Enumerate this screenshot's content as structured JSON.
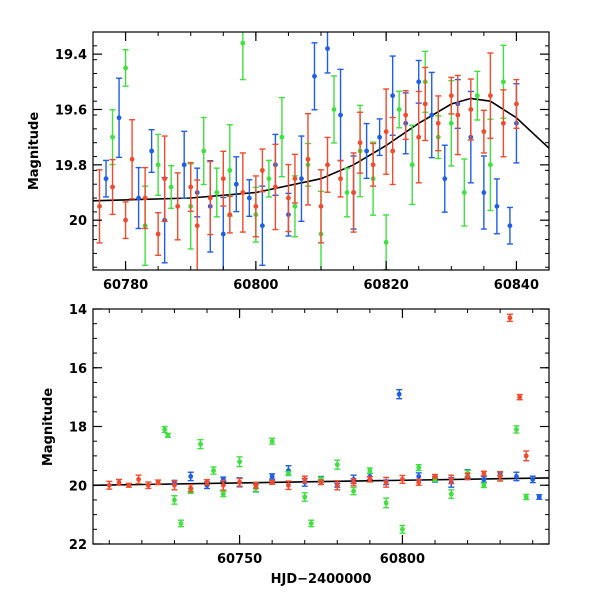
{
  "chart_data": [
    {
      "type": "scatter",
      "title": "",
      "xlabel": "",
      "ylabel": "Magnitude",
      "xlim": [
        60775,
        60845
      ],
      "ylim": [
        19.32,
        20.18
      ],
      "y_inverted": true,
      "grid": false,
      "xticks": [
        60780,
        60800,
        60820,
        60840
      ],
      "yticks": [
        19.4,
        19.6,
        19.8,
        20
      ],
      "ytick_labels": [
        "19.4",
        "19.6",
        "19.8",
        "20"
      ],
      "colors": {
        "blue": "#1f5ee6",
        "green": "#3fe03f",
        "red": "#f24a2c",
        "model": "#000000"
      },
      "model_curve": {
        "x": [
          60775,
          60790,
          60800,
          60810,
          60815,
          60820,
          60825,
          60830,
          60833,
          60836,
          60840,
          60845
        ],
        "y": [
          19.93,
          19.92,
          19.9,
          19.85,
          19.8,
          19.73,
          19.65,
          19.58,
          19.56,
          19.57,
          19.63,
          19.74
        ]
      },
      "series": [
        {
          "color_key": "blue",
          "x": [
            60777,
            60779,
            60782,
            60784,
            60786,
            60789,
            60791,
            60793,
            60795,
            60797,
            60799,
            60801,
            60803,
            60805,
            60807,
            60809,
            60811,
            60813,
            60815,
            60817,
            60819,
            60821,
            60823,
            60825,
            60827,
            60829,
            60831,
            60833,
            60835,
            60837,
            60839,
            60840
          ],
          "y": [
            19.85,
            19.63,
            19.92,
            19.75,
            20.0,
            19.8,
            19.9,
            19.95,
            20.05,
            19.87,
            19.92,
            20.02,
            19.8,
            19.98,
            19.85,
            19.48,
            19.38,
            19.62,
            19.9,
            19.75,
            19.7,
            19.55,
            19.65,
            19.5,
            19.62,
            19.85,
            19.58,
            19.7,
            19.9,
            19.95,
            20.02,
            19.65
          ]
        },
        {
          "color_key": "green",
          "x": [
            60778,
            60780,
            60783,
            60785,
            60787,
            60790,
            60792,
            60794,
            60796,
            60798,
            60800,
            60802,
            60804,
            60806,
            60808,
            60810,
            60812,
            60814,
            60816,
            60818,
            60820,
            60822,
            60824,
            60826,
            60828,
            60830,
            60832,
            60834,
            60836,
            60838
          ],
          "y": [
            19.7,
            19.45,
            20.02,
            19.8,
            19.88,
            19.95,
            19.75,
            19.9,
            19.82,
            19.36,
            19.98,
            19.85,
            19.7,
            19.95,
            19.8,
            20.05,
            19.6,
            19.9,
            19.75,
            19.85,
            20.08,
            19.6,
            19.8,
            19.5,
            19.7,
            19.65,
            19.9,
            19.55,
            19.8,
            19.5
          ]
        },
        {
          "color_key": "red",
          "x": [
            60776,
            60778,
            60780,
            60781,
            60783,
            60785,
            60786,
            60788,
            60790,
            60791,
            60793,
            60795,
            60796,
            60798,
            60800,
            60801,
            60803,
            60805,
            60806,
            60808,
            60810,
            60811,
            60813,
            60815,
            60816,
            60818,
            60820,
            60821,
            60823,
            60825,
            60826,
            60828,
            60830,
            60831,
            60833,
            60835,
            60836,
            60838,
            60840
          ],
          "y": [
            19.95,
            19.88,
            20.0,
            19.78,
            19.92,
            20.05,
            19.85,
            19.95,
            19.88,
            20.02,
            19.92,
            19.85,
            19.98,
            19.9,
            19.95,
            19.82,
            19.88,
            19.92,
            19.85,
            19.78,
            19.95,
            19.8,
            19.85,
            19.9,
            19.72,
            19.8,
            19.68,
            19.75,
            19.62,
            19.7,
            19.58,
            19.65,
            19.55,
            19.62,
            19.6,
            19.68,
            19.55,
            19.65,
            19.58
          ]
        }
      ]
    },
    {
      "type": "scatter",
      "title": "",
      "xlabel": "HJD−2400000",
      "ylabel": "Magnitude",
      "xlim": [
        60705,
        60845
      ],
      "ylim": [
        14,
        22
      ],
      "y_inverted": true,
      "grid": false,
      "xticks": [
        60750,
        60800
      ],
      "yticks": [
        14,
        16,
        18,
        20,
        22
      ],
      "colors": {
        "blue": "#1f5ee6",
        "green": "#3fe03f",
        "red": "#f24a2c",
        "model": "#000000"
      },
      "model_curve": {
        "x": [
          60705,
          60845
        ],
        "y": [
          20.0,
          19.75
        ]
      },
      "series": [
        {
          "color_key": "blue",
          "x": [
            60730,
            60735,
            60740,
            60745,
            60750,
            60755,
            60760,
            60765,
            60770,
            60775,
            60780,
            60785,
            60790,
            60795,
            60799,
            60805,
            60810,
            60815,
            60820,
            60825,
            60830,
            60835,
            60840,
            60842
          ],
          "y": [
            19.9,
            19.7,
            20.0,
            19.8,
            19.9,
            20.1,
            19.7,
            19.5,
            19.9,
            19.8,
            20.0,
            19.8,
            19.7,
            19.9,
            16.9,
            19.7,
            19.8,
            19.9,
            19.6,
            19.8,
            19.6,
            19.7,
            19.8,
            20.4
          ]
        },
        {
          "color_key": "green",
          "x": [
            60727,
            60728,
            60730,
            60732,
            60735,
            60738,
            60742,
            60745,
            60750,
            60755,
            60760,
            60765,
            60770,
            60772,
            60775,
            60780,
            60785,
            60790,
            60795,
            60800,
            60805,
            60810,
            60815,
            60820,
            60825,
            60830,
            60835,
            60838
          ],
          "y": [
            18.1,
            18.3,
            20.5,
            21.3,
            20.2,
            18.6,
            19.5,
            20.3,
            19.2,
            20.1,
            18.5,
            19.6,
            20.4,
            21.3,
            19.8,
            19.3,
            20.2,
            19.5,
            20.6,
            21.5,
            19.4,
            19.8,
            20.3,
            19.6,
            20.0,
            19.7,
            18.1,
            20.4
          ]
        },
        {
          "color_key": "red",
          "x": [
            60710,
            60713,
            60716,
            60719,
            60722,
            60725,
            60730,
            60735,
            60740,
            60745,
            60750,
            60755,
            60760,
            60765,
            60770,
            60775,
            60780,
            60785,
            60790,
            60795,
            60800,
            60805,
            60810,
            60815,
            60820,
            60825,
            60830,
            60833,
            60836,
            60838
          ],
          "y": [
            20.0,
            19.9,
            20.0,
            19.8,
            20.0,
            19.9,
            20.0,
            20.1,
            19.9,
            20.0,
            19.9,
            20.0,
            19.9,
            20.0,
            19.8,
            19.9,
            20.0,
            19.9,
            19.8,
            19.9,
            19.8,
            19.9,
            19.7,
            19.8,
            19.7,
            19.6,
            19.7,
            14.3,
            17.0,
            19.0
          ]
        }
      ]
    }
  ]
}
